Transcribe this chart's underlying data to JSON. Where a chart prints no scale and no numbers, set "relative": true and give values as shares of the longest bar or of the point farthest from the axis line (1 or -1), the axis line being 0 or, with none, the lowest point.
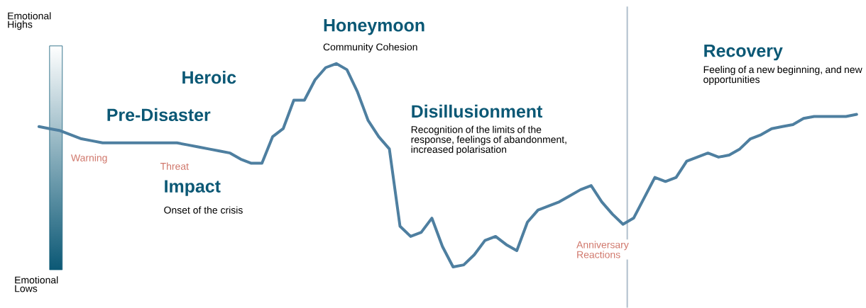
{
  "chart_data": {
    "type": "line",
    "relative": true,
    "categories": [
      null,
      null,
      null,
      null,
      null,
      null,
      null,
      null,
      null,
      null,
      null,
      null,
      null,
      null,
      null,
      null,
      null,
      null,
      null,
      null,
      null,
      null,
      null,
      null,
      null,
      null,
      null,
      null,
      null,
      null,
      null,
      null,
      null,
      null,
      null,
      null,
      null,
      null,
      null,
      null,
      null,
      null,
      null,
      null,
      null,
      null,
      null,
      null,
      null,
      null,
      null,
      null,
      null,
      null,
      null,
      null,
      null,
      null,
      null,
      null,
      null,
      null,
      null,
      null,
      null,
      null,
      null,
      null,
      null,
      null,
      null,
      null,
      null,
      null,
      null,
      null,
      null,
      null
    ],
    "values": [
      0.69,
      0.68,
      0.67,
      0.65,
      0.63,
      0.62,
      0.61,
      0.61,
      0.61,
      0.61,
      0.61,
      0.61,
      0.61,
      0.61,
      0.6,
      0.59,
      0.58,
      0.57,
      0.56,
      0.53,
      0.51,
      0.51,
      0.64,
      0.68,
      0.82,
      0.82,
      0.92,
      0.98,
      1,
      0.97,
      0.86,
      0.72,
      0.64,
      0.58,
      0.2,
      0.15,
      0.17,
      0.24,
      0.1,
      0,
      0.01,
      0.06,
      0.13,
      0.15,
      0.11,
      0.08,
      0.22,
      0.28,
      0.3,
      0.32,
      0.35,
      0.38,
      0.4,
      0.32,
      0.26,
      0.21,
      0.24,
      0.34,
      0.44,
      0.42,
      0.44,
      0.52,
      0.54,
      0.56,
      0.54,
      0.55,
      0.58,
      0.63,
      0.65,
      0.68,
      0.69,
      0.7,
      0.73,
      0.74,
      0.74,
      0.74,
      0.74,
      0.75
    ],
    "color": "#4e7fa0",
    "annotations": [
      "Emotional Highs",
      "Emotional Lows",
      "Pre-Disaster",
      "Heroic",
      "Honeymoon",
      "Community Cohesion",
      "Impact",
      "Onset of the crisis",
      "Warning",
      "Threat",
      "Disillusionment",
      "Recognition of the limits of the response, feelings of abandonment, increased polarisation",
      "Anniversary Reactions",
      "Recovery",
      "Feeling of a new beginning, and new opportunities"
    ]
  }
}
